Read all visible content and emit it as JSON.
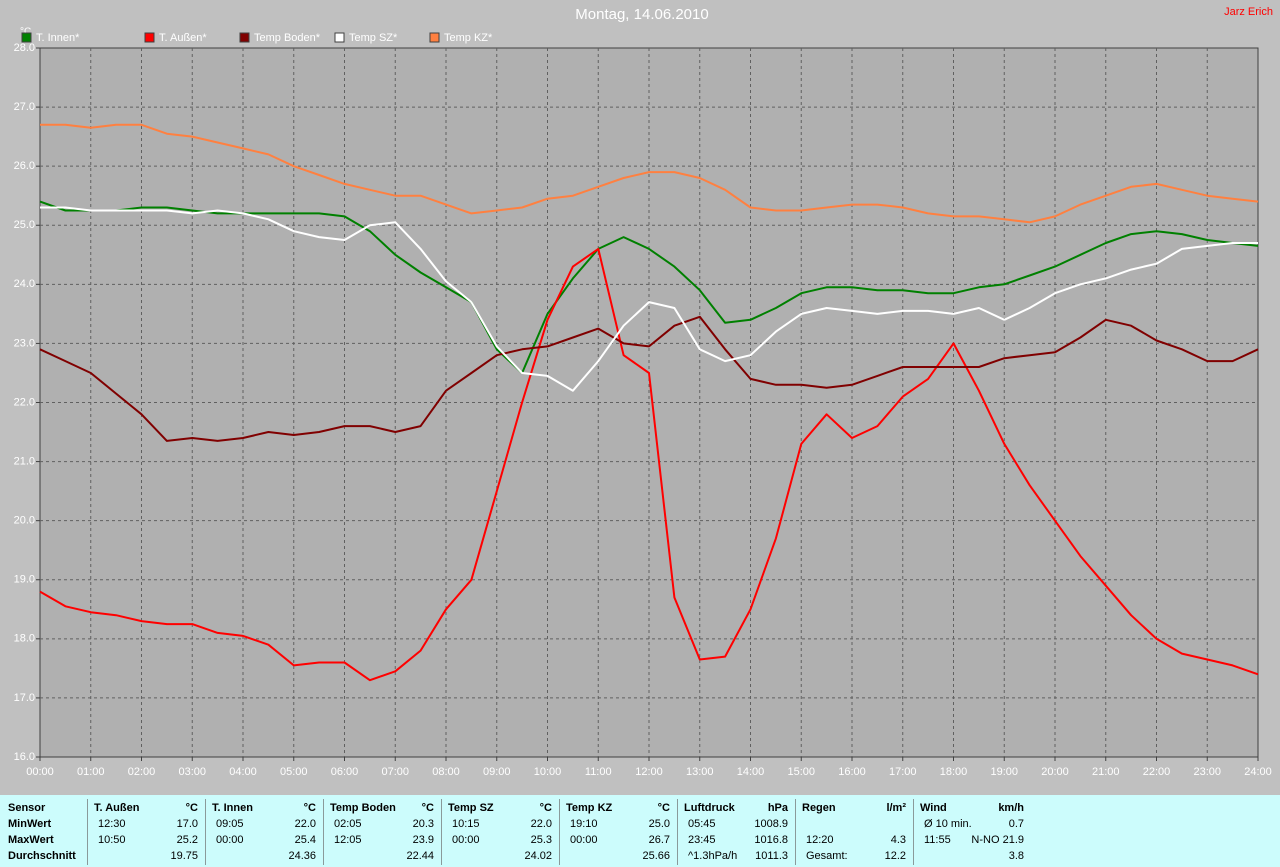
{
  "chart_data": {
    "type": "line",
    "title": "Montag, 14.06.2010",
    "author": "Jarz Erich",
    "y_label": "°C",
    "grid": true,
    "x": [
      0,
      0.5,
      1,
      1.5,
      2,
      2.5,
      3,
      3.5,
      4,
      4.5,
      5,
      5.5,
      6,
      6.5,
      7,
      7.5,
      8,
      8.5,
      9,
      9.5,
      10,
      10.5,
      11,
      11.5,
      12,
      12.5,
      13,
      13.5,
      14,
      14.5,
      15,
      15.5,
      16,
      16.5,
      17,
      17.5,
      18,
      18.5,
      19,
      19.5,
      20,
      20.5,
      21,
      21.5,
      22,
      22.5,
      23,
      23.5,
      24
    ],
    "xlim": [
      0,
      24
    ],
    "xticks": [
      {
        "value": 0,
        "label": "00:00"
      },
      {
        "value": 1,
        "label": "01:00"
      },
      {
        "value": 2,
        "label": "02:00"
      },
      {
        "value": 3,
        "label": "03:00"
      },
      {
        "value": 4,
        "label": "04:00"
      },
      {
        "value": 5,
        "label": "05:00"
      },
      {
        "value": 6,
        "label": "06:00"
      },
      {
        "value": 7,
        "label": "07:00"
      },
      {
        "value": 8,
        "label": "08:00"
      },
      {
        "value": 9,
        "label": "09:00"
      },
      {
        "value": 10,
        "label": "10:00"
      },
      {
        "value": 11,
        "label": "11:00"
      },
      {
        "value": 12,
        "label": "12:00"
      },
      {
        "value": 13,
        "label": "13:00"
      },
      {
        "value": 14,
        "label": "14:00"
      },
      {
        "value": 15,
        "label": "15:00"
      },
      {
        "value": 16,
        "label": "16:00"
      },
      {
        "value": 17,
        "label": "17:00"
      },
      {
        "value": 18,
        "label": "18:00"
      },
      {
        "value": 19,
        "label": "19:00"
      },
      {
        "value": 20,
        "label": "20:00"
      },
      {
        "value": 21,
        "label": "21:00"
      },
      {
        "value": 22,
        "label": "22:00"
      },
      {
        "value": 23,
        "label": "23:00"
      },
      {
        "value": 24,
        "label": "24:00"
      }
    ],
    "ylim": [
      16,
      28
    ],
    "yticks": [
      {
        "value": 16,
        "label": "16.0"
      },
      {
        "value": 17,
        "label": "17.0"
      },
      {
        "value": 18,
        "label": "18.0"
      },
      {
        "value": 19,
        "label": "19.0"
      },
      {
        "value": 20,
        "label": "20.0"
      },
      {
        "value": 21,
        "label": "21.0"
      },
      {
        "value": 22,
        "label": "22.0"
      },
      {
        "value": 23,
        "label": "23.0"
      },
      {
        "value": 24,
        "label": "24.0"
      },
      {
        "value": 25,
        "label": "25.0"
      },
      {
        "value": 26,
        "label": "26.0"
      },
      {
        "value": 27,
        "label": "27.0"
      },
      {
        "value": 28,
        "label": "28.0"
      }
    ],
    "series": [
      {
        "name": "T. Innen*",
        "color": "#008000",
        "values": [
          25.4,
          25.25,
          25.25,
          25.25,
          25.3,
          25.3,
          25.25,
          25.2,
          25.2,
          25.2,
          25.2,
          25.2,
          25.15,
          24.9,
          24.5,
          24.2,
          23.95,
          23.7,
          22.9,
          22.5,
          23.5,
          24.1,
          24.6,
          24.8,
          24.6,
          24.3,
          23.9,
          23.35,
          23.4,
          23.6,
          23.85,
          23.95,
          23.95,
          23.9,
          23.9,
          23.85,
          23.85,
          23.95,
          24.0,
          24.15,
          24.3,
          24.5,
          24.7,
          24.85,
          24.9,
          24.85,
          24.75,
          24.7,
          24.65
        ]
      },
      {
        "name": "T. Außen*",
        "color": "#ff0000",
        "values": [
          18.8,
          18.55,
          18.45,
          18.4,
          18.3,
          18.25,
          18.25,
          18.1,
          18.05,
          17.9,
          17.55,
          17.6,
          17.6,
          17.3,
          17.45,
          17.8,
          18.5,
          19.0,
          20.5,
          22.0,
          23.4,
          24.3,
          24.6,
          22.8,
          22.5,
          18.7,
          17.65,
          17.7,
          18.5,
          19.7,
          21.3,
          21.8,
          21.4,
          21.6,
          22.1,
          22.4,
          23.0,
          22.2,
          21.3,
          20.6,
          20.0,
          19.4,
          18.9,
          18.4,
          18.0,
          17.75,
          17.65,
          17.55,
          17.4
        ]
      },
      {
        "name": "Temp Boden*",
        "color": "#800000",
        "values": [
          22.9,
          22.7,
          22.5,
          22.15,
          21.8,
          21.35,
          21.4,
          21.35,
          21.4,
          21.5,
          21.45,
          21.5,
          21.6,
          21.6,
          21.5,
          21.6,
          22.2,
          22.5,
          22.8,
          22.9,
          22.95,
          23.1,
          23.25,
          23.0,
          22.95,
          23.3,
          23.45,
          22.9,
          22.4,
          22.3,
          22.3,
          22.25,
          22.3,
          22.45,
          22.6,
          22.6,
          22.6,
          22.6,
          22.75,
          22.8,
          22.85,
          23.1,
          23.4,
          23.3,
          23.05,
          22.9,
          22.7,
          22.7,
          22.9
        ]
      },
      {
        "name": "Temp SZ*",
        "color": "#ffffff",
        "values": [
          25.3,
          25.3,
          25.25,
          25.25,
          25.25,
          25.25,
          25.2,
          25.25,
          25.2,
          25.1,
          24.9,
          24.8,
          24.75,
          25.0,
          25.05,
          24.6,
          24.05,
          23.7,
          22.95,
          22.5,
          22.45,
          22.2,
          22.7,
          23.3,
          23.7,
          23.6,
          22.9,
          22.7,
          22.8,
          23.2,
          23.5,
          23.6,
          23.55,
          23.5,
          23.55,
          23.55,
          23.5,
          23.6,
          23.4,
          23.6,
          23.85,
          24.0,
          24.1,
          24.25,
          24.35,
          24.6,
          24.65,
          24.7,
          24.7
        ]
      },
      {
        "name": "Temp KZ*",
        "color": "#ff8040",
        "values": [
          26.7,
          26.7,
          26.65,
          26.7,
          26.7,
          26.55,
          26.5,
          26.4,
          26.3,
          26.2,
          26.0,
          25.85,
          25.7,
          25.6,
          25.5,
          25.5,
          25.35,
          25.2,
          25.25,
          25.3,
          25.45,
          25.5,
          25.65,
          25.8,
          25.9,
          25.9,
          25.8,
          25.6,
          25.3,
          25.25,
          25.25,
          25.3,
          25.35,
          25.35,
          25.3,
          25.2,
          25.15,
          25.15,
          25.1,
          25.05,
          25.15,
          25.35,
          25.5,
          25.65,
          25.7,
          25.6,
          25.5,
          25.45,
          25.4
        ]
      }
    ]
  },
  "table": {
    "label_column": [
      "Sensor",
      "MinWert",
      "MaxWert",
      "Durchschnitt"
    ],
    "groups": [
      {
        "header": "T. Außen",
        "unit": "°C",
        "min": [
          "12:30",
          "17.0"
        ],
        "max": [
          "10:50",
          "25.2"
        ],
        "avg": [
          "19.75"
        ]
      },
      {
        "header": "T. Innen",
        "unit": "°C",
        "min": [
          "09:05",
          "22.0"
        ],
        "max": [
          "00:00",
          "25.4"
        ],
        "avg": [
          "24.36"
        ]
      },
      {
        "header": "Temp Boden",
        "unit": "°C",
        "min": [
          "02:05",
          "20.3"
        ],
        "max": [
          "12:05",
          "23.9"
        ],
        "avg": [
          "22.44"
        ]
      },
      {
        "header": "Temp SZ",
        "unit": "°C",
        "min": [
          "10:15",
          "22.0"
        ],
        "max": [
          "00:00",
          "25.3"
        ],
        "avg": [
          "24.02"
        ]
      },
      {
        "header": "Temp KZ",
        "unit": "°C",
        "min": [
          "19:10",
          "25.0"
        ],
        "max": [
          "00:00",
          "26.7"
        ],
        "avg": [
          "25.66"
        ]
      },
      {
        "header": "Luftdruck",
        "unit": "hPa",
        "min": [
          "05:45",
          "1008.9"
        ],
        "max": [
          "23:45",
          "1016.8"
        ],
        "avg": [
          "^1.3hPa/h",
          "1011.3"
        ]
      },
      {
        "header": "Regen",
        "unit": "l/m²",
        "max": [
          "12:20",
          "4.3"
        ],
        "avg": [
          "Gesamt:",
          "12.2"
        ]
      },
      {
        "header": "Wind",
        "unit": "km/h",
        "min": [
          "Ø 10 min.",
          "0.7"
        ],
        "max": [
          "11:55",
          "N-NO 21.9"
        ],
        "avg": [
          "3.8"
        ]
      }
    ]
  }
}
